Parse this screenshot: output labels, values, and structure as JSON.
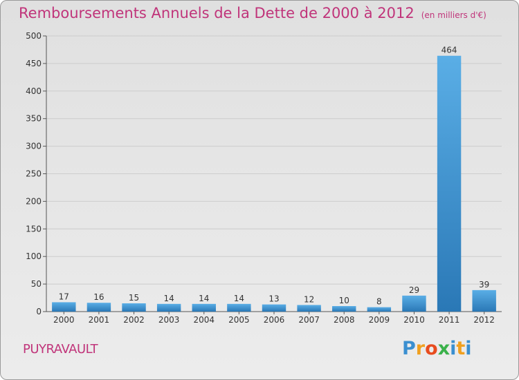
{
  "header": {
    "title": "Remboursements Annuels de la Dette de 2000 à 2012",
    "unit": "(en milliers d'€)"
  },
  "footer": {
    "place": "PUYRAVAULT",
    "logo": "Proxiti"
  },
  "colors": {
    "title": "#c0347a",
    "bar_top": "#5aaee6",
    "bar_bottom": "#2a78b6",
    "grid": "#cccccc"
  },
  "chart_data": {
    "type": "bar",
    "title": "Remboursements Annuels de la Dette de 2000 à 2012",
    "subtitle": "(en milliers d'€)",
    "xlabel": "",
    "ylabel": "",
    "categories": [
      "2000",
      "2001",
      "2002",
      "2003",
      "2004",
      "2005",
      "2006",
      "2007",
      "2008",
      "2009",
      "2010",
      "2011",
      "2012"
    ],
    "values": [
      17,
      16,
      15,
      14,
      14,
      14,
      13,
      12,
      10,
      8,
      29,
      464,
      39
    ],
    "ylim": [
      0,
      500
    ],
    "yticks": [
      0,
      50,
      100,
      150,
      200,
      250,
      300,
      350,
      400,
      450,
      500
    ],
    "grid": "horizontal"
  }
}
